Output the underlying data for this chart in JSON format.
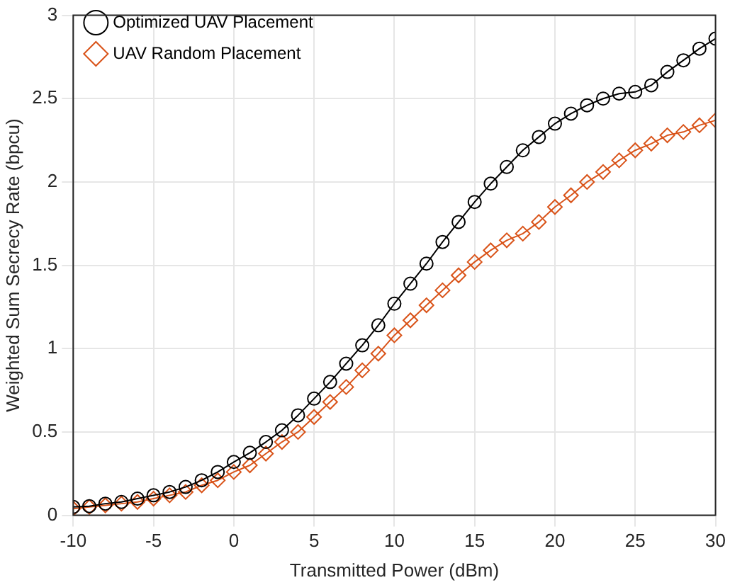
{
  "chart_data": {
    "type": "line",
    "xlabel": "Transmitted Power (dBm)",
    "ylabel": "Weighted Sum Secrecy Rate (bpcu)",
    "x": [
      -10,
      -9,
      -8,
      -7,
      -6,
      -5,
      -4,
      -3,
      -2,
      -1,
      0,
      1,
      2,
      3,
      4,
      5,
      6,
      7,
      8,
      9,
      10,
      11,
      12,
      13,
      14,
      15,
      16,
      17,
      18,
      19,
      20,
      21,
      22,
      23,
      24,
      25,
      26,
      27,
      28,
      29,
      30
    ],
    "series": [
      {
        "name": "Optimized UAV Placement",
        "color": "#000000",
        "marker": "circle",
        "values": [
          0.05,
          0.055,
          0.07,
          0.08,
          0.1,
          0.12,
          0.14,
          0.17,
          0.21,
          0.26,
          0.32,
          0.375,
          0.44,
          0.51,
          0.6,
          0.7,
          0.8,
          0.91,
          1.02,
          1.14,
          1.27,
          1.39,
          1.51,
          1.64,
          1.76,
          1.88,
          1.99,
          2.09,
          2.19,
          2.27,
          2.35,
          2.41,
          2.46,
          2.5,
          2.53,
          2.54,
          2.58,
          2.66,
          2.73,
          2.8,
          2.86
        ]
      },
      {
        "name": "UAV Random Placement",
        "color": "#d95319",
        "marker": "diamond",
        "values": [
          0.04,
          0.05,
          0.06,
          0.07,
          0.08,
          0.1,
          0.12,
          0.14,
          0.18,
          0.21,
          0.26,
          0.3,
          0.37,
          0.44,
          0.5,
          0.59,
          0.68,
          0.77,
          0.87,
          0.97,
          1.08,
          1.17,
          1.26,
          1.35,
          1.44,
          1.52,
          1.59,
          1.65,
          1.69,
          1.76,
          1.85,
          1.92,
          2.0,
          2.06,
          2.13,
          2.19,
          2.23,
          2.28,
          2.3,
          2.34,
          2.37
        ]
      }
    ],
    "xlim": [
      -10,
      30
    ],
    "xticks": [
      -10,
      -5,
      0,
      5,
      10,
      15,
      20,
      25,
      30
    ],
    "ylim": [
      0,
      3
    ],
    "yticks": [
      0,
      0.5,
      1,
      1.5,
      2,
      2.5,
      3
    ],
    "grid": true,
    "legend": "top left",
    "line_style": "solid"
  }
}
